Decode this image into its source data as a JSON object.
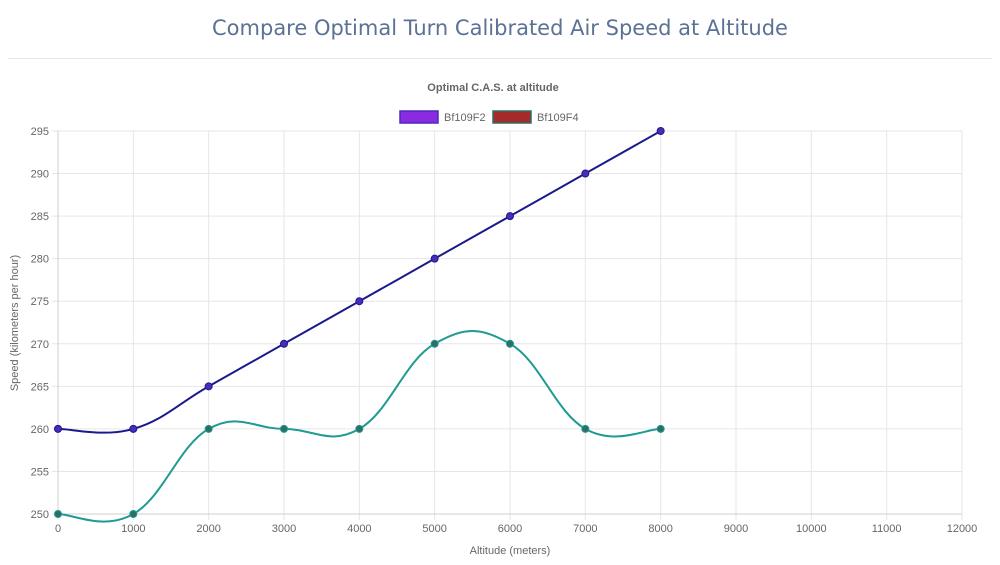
{
  "page": {
    "title": "Compare Optimal Turn Calibrated Air Speed at Altitude"
  },
  "chart_data": {
    "type": "line",
    "title": "Optimal C.A.S. at altitude",
    "xlabel": "Altitude (meters)",
    "ylabel": "Speed (kilometers per hour)",
    "xlim": [
      0,
      12000
    ],
    "ylim": [
      250,
      295
    ],
    "x_ticks": [
      0,
      1000,
      2000,
      3000,
      4000,
      5000,
      6000,
      7000,
      8000,
      9000,
      10000,
      11000,
      12000
    ],
    "y_ticks": [
      250,
      255,
      260,
      265,
      270,
      275,
      280,
      285,
      290,
      295
    ],
    "grid": true,
    "legend_position": "top-center",
    "series": [
      {
        "name": "Bf109F2",
        "legend_color": "#8a2be2",
        "line_color": "#1a1a8c",
        "point_color": "#4b2bb8",
        "x": [
          0,
          1000,
          2000,
          3000,
          4000,
          5000,
          6000,
          7000,
          8000
        ],
        "values": [
          260,
          260,
          265,
          270,
          275,
          280,
          285,
          290,
          295
        ]
      },
      {
        "name": "Bf109F4",
        "legend_color": "#a52a2a",
        "line_color": "#1f9a94",
        "point_color": "#2e6e63",
        "x": [
          0,
          1000,
          2000,
          3000,
          4000,
          5000,
          6000,
          7000,
          8000
        ],
        "values": [
          250,
          250,
          260,
          260,
          260,
          270,
          270,
          260,
          260
        ]
      }
    ]
  }
}
